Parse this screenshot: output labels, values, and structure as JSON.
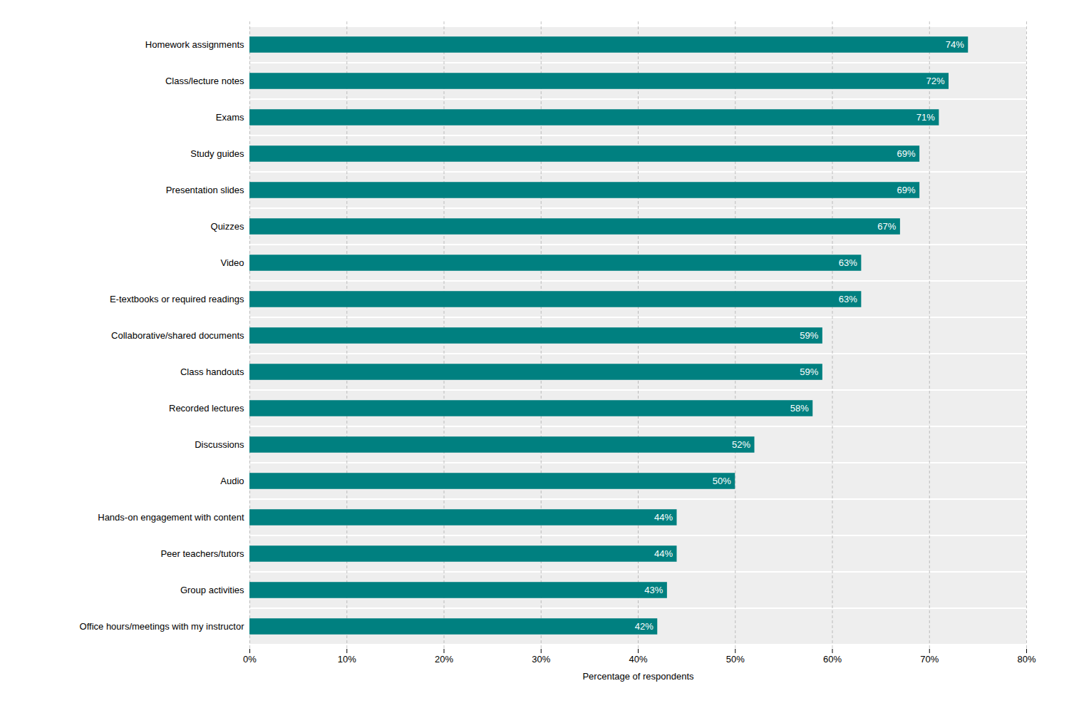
{
  "chart_data": {
    "type": "bar",
    "orientation": "horizontal",
    "categories": [
      "Office hours/meetings with my instructor",
      "Group activities",
      "Peer teachers/tutors",
      "Hands-on engagement with content",
      "Audio",
      "Discussions",
      "Recorded lectures",
      "Class handouts",
      "Collaborative/shared documents",
      "E-textbooks or required readings",
      "Video",
      "Quizzes",
      "Presentation slides",
      "Study guides",
      "Exams",
      "Class/lecture notes",
      "Homework assignments"
    ],
    "values": [
      42,
      43,
      44,
      44,
      50,
      52,
      58,
      59,
      59,
      63,
      63,
      67,
      69,
      69,
      71,
      72,
      74
    ],
    "value_labels": [
      "42%",
      "43%",
      "44%",
      "44%",
      "50%",
      "52%",
      "58%",
      "59%",
      "59%",
      "63%",
      "63%",
      "67%",
      "69%",
      "69%",
      "71%",
      "72%",
      "74%"
    ],
    "data_labels": true,
    "color": "#008080",
    "xlabel": "Percentage of respondents",
    "xlim": [
      0,
      80
    ],
    "xticks": [
      {
        "value": 0,
        "label": "0%"
      },
      {
        "value": 10,
        "label": "10%"
      },
      {
        "value": 20,
        "label": "20%"
      },
      {
        "value": 30,
        "label": "30%"
      },
      {
        "value": 40,
        "label": "40%"
      },
      {
        "value": 50,
        "label": "50%"
      },
      {
        "value": 60,
        "label": "60%"
      },
      {
        "value": 70,
        "label": "70%"
      },
      {
        "value": 80,
        "label": "80%"
      }
    ],
    "grid": true
  }
}
